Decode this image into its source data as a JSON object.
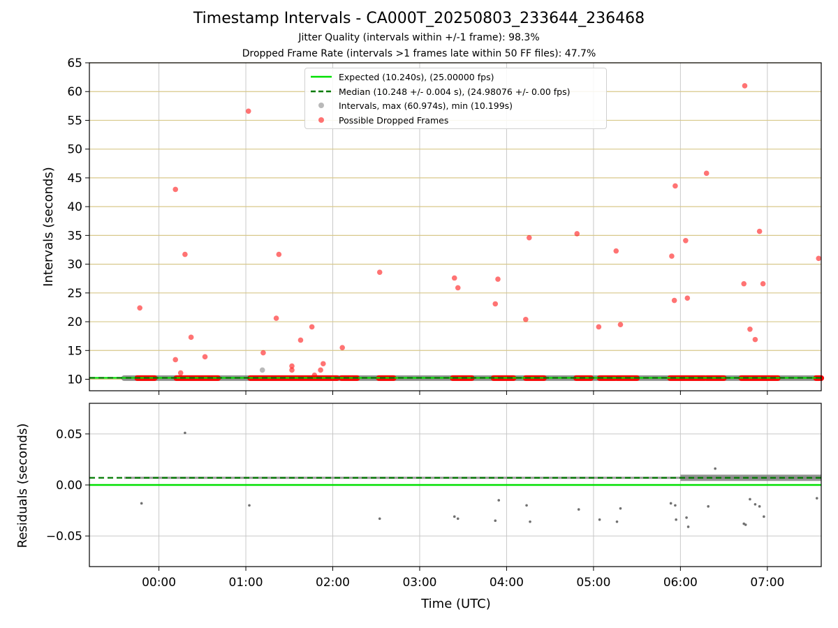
{
  "title": "Timestamp Intervals - CA000T_20250803_233644_236468",
  "subtitle_1": "Jitter Quality (intervals within +/-1 frame): 98.3%",
  "subtitle_2": "Dropped Frame Rate (intervals >1 frames late within 50 FF files): 47.7%",
  "colors": {
    "expected": "#00e000",
    "median": "#007a00",
    "intervals": "#808080",
    "dropped": "#ff0000",
    "hgrid_top": "#d8c88a",
    "grid": "#c8c8c8"
  },
  "legend": {
    "location": "upper-center",
    "items": [
      {
        "key": "expected",
        "label": "Expected (10.240s), (25.00000 fps)"
      },
      {
        "key": "median",
        "label": "Median (10.248 +/- 0.004 s), (24.98076 +/- 0.00 fps)"
      },
      {
        "key": "intervals",
        "label": "Intervals, max (60.974s), min (10.199s)"
      },
      {
        "key": "dropped",
        "label": "Possible Dropped Frames"
      }
    ]
  },
  "chart_data": [
    {
      "type": "scatter",
      "panel": "intervals",
      "ylabel": "Intervals (seconds)",
      "ylim": [
        8,
        65
      ],
      "yticks": [
        10,
        15,
        20,
        25,
        30,
        35,
        40,
        45,
        50,
        55,
        60,
        65
      ],
      "xlim_hours": [
        -0.8,
        7.62
      ],
      "grid": true,
      "expected_interval": 10.24,
      "median_interval": 10.248,
      "baseline": {
        "value": 10.2,
        "x_start_hours": -0.4,
        "x_end_hours": 7.62,
        "dropped_runs_hours": [
          [
            -0.25,
            -0.05
          ],
          [
            0.2,
            0.68
          ],
          [
            1.05,
            2.05
          ],
          [
            2.1,
            2.28
          ],
          [
            2.53,
            2.7
          ],
          [
            3.38,
            3.6
          ],
          [
            3.85,
            4.08
          ],
          [
            4.22,
            4.43
          ],
          [
            4.8,
            4.97
          ],
          [
            5.07,
            5.25
          ],
          [
            5.27,
            5.5
          ],
          [
            5.88,
            6.28
          ],
          [
            6.3,
            6.5
          ],
          [
            6.7,
            7.12
          ],
          [
            7.56,
            7.62
          ]
        ]
      },
      "series": [
        {
          "name": "Possible Dropped Frames",
          "points": [
            [
              -0.22,
              22.4
            ],
            [
              0.19,
              43.0
            ],
            [
              0.19,
              13.4
            ],
            [
              0.25,
              11.1
            ],
            [
              0.3,
              31.7
            ],
            [
              0.37,
              17.3
            ],
            [
              0.53,
              13.9
            ],
            [
              1.03,
              56.6
            ],
            [
              1.2,
              14.6
            ],
            [
              1.35,
              20.6
            ],
            [
              1.38,
              31.7
            ],
            [
              1.53,
              12.3
            ],
            [
              1.53,
              11.6
            ],
            [
              1.63,
              16.8
            ],
            [
              1.76,
              19.1
            ],
            [
              1.79,
              10.7
            ],
            [
              1.86,
              11.6
            ],
            [
              1.89,
              12.7
            ],
            [
              2.11,
              15.5
            ],
            [
              2.54,
              28.6
            ],
            [
              3.4,
              27.6
            ],
            [
              3.44,
              25.9
            ],
            [
              3.87,
              23.1
            ],
            [
              3.9,
              27.4
            ],
            [
              4.22,
              20.4
            ],
            [
              4.26,
              34.6
            ],
            [
              4.81,
              35.3
            ],
            [
              5.06,
              19.1
            ],
            [
              5.26,
              32.3
            ],
            [
              5.31,
              19.5
            ],
            [
              5.9,
              31.4
            ],
            [
              5.93,
              23.7
            ],
            [
              5.94,
              43.6
            ],
            [
              6.06,
              34.1
            ],
            [
              6.08,
              24.1
            ],
            [
              6.3,
              45.8
            ],
            [
              6.74,
              61.0
            ],
            [
              6.73,
              26.6
            ],
            [
              6.8,
              18.7
            ],
            [
              6.86,
              16.9
            ],
            [
              6.91,
              35.7
            ],
            [
              6.95,
              26.6
            ],
            [
              7.59,
              31.0
            ]
          ]
        },
        {
          "name": "Intervals, max (60.974s), min (10.199s)",
          "points": [
            [
              1.19,
              11.6
            ]
          ]
        }
      ]
    },
    {
      "type": "scatter",
      "panel": "residuals",
      "ylabel": "Residuals (seconds)",
      "xlabel": "Time (UTC)",
      "ylim": [
        -0.08,
        0.08
      ],
      "yticks": [
        0.05,
        0.0,
        -0.05
      ],
      "ytick_labels": [
        "0.05",
        "0.00",
        "−0.05"
      ],
      "xticks_hours": [
        0,
        1,
        2,
        3,
        4,
        5,
        6,
        7
      ],
      "xtick_labels": [
        "00:00",
        "01:00",
        "02:00",
        "03:00",
        "04:00",
        "05:00",
        "06:00",
        "07:00"
      ],
      "xlim_hours": [
        -0.8,
        7.62
      ],
      "grid": true,
      "zero_line": 0.0,
      "median_line": 0.007,
      "band": {
        "center": 0.007,
        "x_start_hours": -0.4,
        "x_end_hours": 7.62,
        "dense_from_hours": 6.0
      },
      "series": [
        {
          "name": "Residuals",
          "points": [
            [
              -0.2,
              -0.018
            ],
            [
              0.3,
              0.051
            ],
            [
              1.04,
              -0.02
            ],
            [
              2.54,
              -0.033
            ],
            [
              3.4,
              -0.031
            ],
            [
              3.44,
              -0.033
            ],
            [
              3.87,
              -0.035
            ],
            [
              3.91,
              -0.015
            ],
            [
              4.23,
              -0.02
            ],
            [
              4.27,
              -0.036
            ],
            [
              4.83,
              -0.024
            ],
            [
              5.07,
              -0.034
            ],
            [
              5.27,
              -0.036
            ],
            [
              5.31,
              -0.023
            ],
            [
              5.89,
              -0.018
            ],
            [
              5.94,
              -0.02
            ],
            [
              5.95,
              -0.034
            ],
            [
              6.07,
              -0.032
            ],
            [
              6.09,
              -0.041
            ],
            [
              6.32,
              -0.021
            ],
            [
              6.73,
              -0.038
            ],
            [
              6.75,
              -0.039
            ],
            [
              6.8,
              -0.014
            ],
            [
              6.86,
              -0.019
            ],
            [
              6.91,
              -0.021
            ],
            [
              6.96,
              -0.031
            ],
            [
              7.57,
              -0.013
            ],
            [
              6.4,
              0.016
            ]
          ]
        }
      ]
    }
  ]
}
